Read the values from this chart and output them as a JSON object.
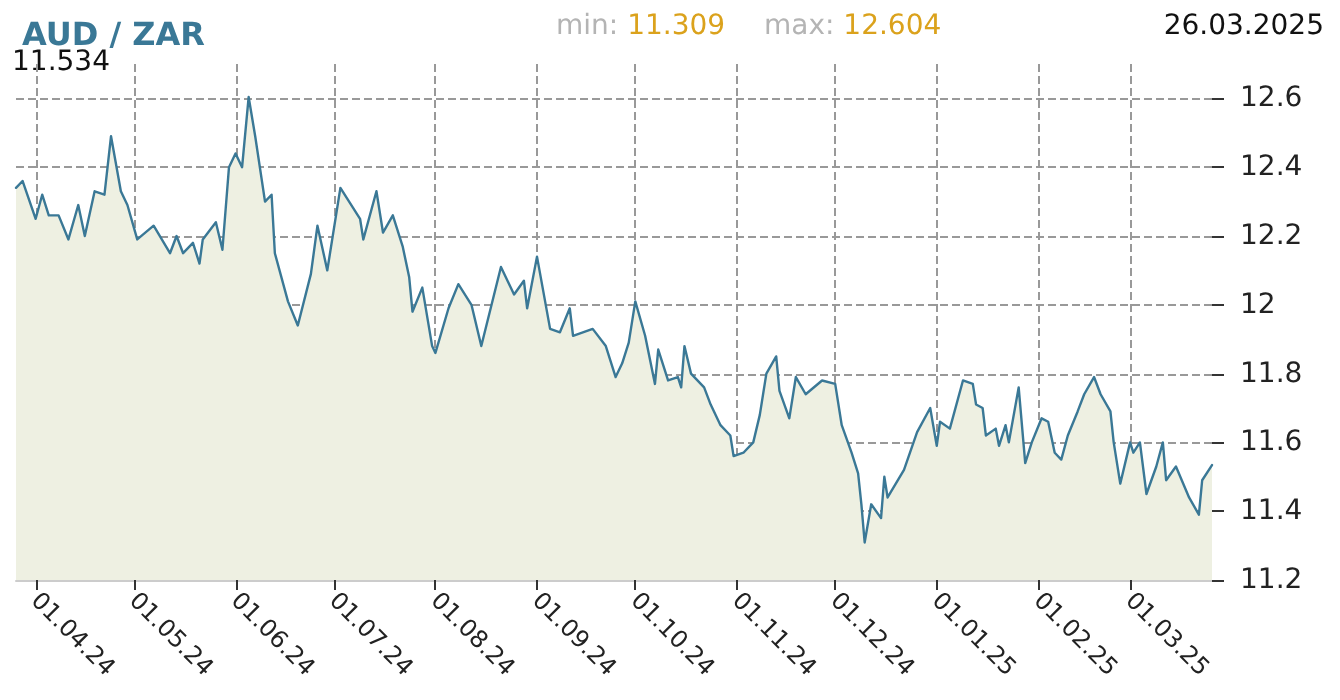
{
  "chart_data": {
    "type": "area",
    "title": "AUD / ZAR",
    "annotations": [
      "min: 11.309",
      "max: 12.604",
      "26.03.2025",
      "11.534"
    ],
    "x": [
      "2024-03-26",
      "2024-03-28",
      "2024-04-01",
      "2024-04-03",
      "2024-04-05",
      "2024-04-08",
      "2024-04-11",
      "2024-04-14",
      "2024-04-16",
      "2024-04-19",
      "2024-04-22",
      "2024-04-24",
      "2024-04-27",
      "2024-04-29",
      "2024-05-02",
      "2024-05-07",
      "2024-05-12",
      "2024-05-14",
      "2024-05-16",
      "2024-05-19",
      "2024-05-21",
      "2024-05-22",
      "2024-05-26",
      "2024-05-28",
      "2024-05-30",
      "2024-06-01",
      "2024-06-03",
      "2024-06-05",
      "2024-06-07",
      "2024-06-10",
      "2024-06-12",
      "2024-06-13",
      "2024-06-17",
      "2024-06-20",
      "2024-06-24",
      "2024-06-26",
      "2024-06-29",
      "2024-07-03",
      "2024-07-09",
      "2024-07-10",
      "2024-07-14",
      "2024-07-16",
      "2024-07-19",
      "2024-07-22",
      "2024-07-24",
      "2024-07-25",
      "2024-07-28",
      "2024-07-31",
      "2024-08-01",
      "2024-08-05",
      "2024-08-08",
      "2024-08-12",
      "2024-08-15",
      "2024-08-21",
      "2024-08-25",
      "2024-08-28",
      "2024-08-29",
      "2024-09-01",
      "2024-09-05",
      "2024-09-08",
      "2024-09-11",
      "2024-09-12",
      "2024-09-18",
      "2024-09-22",
      "2024-09-25",
      "2024-09-27",
      "2024-09-29",
      "2024-10-01",
      "2024-10-04",
      "2024-10-07",
      "2024-10-08",
      "2024-10-11",
      "2024-10-14",
      "2024-10-15",
      "2024-10-16",
      "2024-10-18",
      "2024-10-22",
      "2024-10-24",
      "2024-10-27",
      "2024-10-30",
      "2024-10-31",
      "2024-11-03",
      "2024-11-06",
      "2024-11-08",
      "2024-11-10",
      "2024-11-13",
      "2024-11-14",
      "2024-11-17",
      "2024-11-19",
      "2024-11-22",
      "2024-11-27",
      "2024-12-01",
      "2024-12-03",
      "2024-12-06",
      "2024-12-08",
      "2024-12-09",
      "2024-12-10",
      "2024-12-12",
      "2024-12-15",
      "2024-12-16",
      "2024-12-17",
      "2024-12-22",
      "2024-12-26",
      "2024-12-30",
      "2025-01-01",
      "2025-01-02",
      "2025-01-05",
      "2025-01-09",
      "2025-01-12",
      "2025-01-13",
      "2025-01-15",
      "2025-01-16",
      "2025-01-19",
      "2025-01-20",
      "2025-01-22",
      "2025-01-23",
      "2025-01-26",
      "2025-01-28",
      "2025-01-30",
      "2025-02-02",
      "2025-02-04",
      "2025-02-06",
      "2025-02-08",
      "2025-02-10",
      "2025-02-13",
      "2025-02-15",
      "2025-02-18",
      "2025-02-20",
      "2025-02-23",
      "2025-02-24",
      "2025-02-26",
      "2025-03-01",
      "2025-03-02",
      "2025-03-04",
      "2025-03-06",
      "2025-03-09",
      "2025-03-11",
      "2025-03-12",
      "2025-03-15",
      "2025-03-19",
      "2025-03-22",
      "2025-03-23",
      "2025-03-26"
    ],
    "series": [
      {
        "color": "#3a7896",
        "values": [
          12.34,
          12.36,
          12.25,
          12.32,
          12.26,
          12.26,
          12.19,
          12.29,
          12.2,
          12.33,
          12.32,
          12.49,
          12.33,
          12.29,
          12.19,
          12.23,
          12.15,
          12.2,
          12.15,
          12.18,
          12.12,
          12.19,
          12.24,
          12.16,
          12.4,
          12.44,
          12.4,
          12.604,
          12.49,
          12.3,
          12.32,
          12.15,
          12.01,
          11.94,
          12.09,
          12.23,
          12.1,
          12.34,
          12.25,
          12.19,
          12.33,
          12.21,
          12.26,
          12.17,
          12.08,
          11.98,
          12.05,
          11.88,
          11.86,
          11.99,
          12.06,
          12.0,
          11.88,
          12.11,
          12.03,
          12.07,
          11.99,
          12.14,
          11.93,
          11.92,
          11.99,
          11.91,
          11.93,
          11.88,
          11.79,
          11.83,
          11.89,
          12.01,
          11.91,
          11.77,
          11.87,
          11.78,
          11.79,
          11.76,
          11.88,
          11.8,
          11.76,
          11.71,
          11.65,
          11.62,
          11.56,
          11.57,
          11.6,
          11.68,
          11.8,
          11.85,
          11.75,
          11.67,
          11.79,
          11.74,
          11.78,
          11.77,
          11.65,
          11.57,
          11.51,
          11.42,
          11.309,
          11.42,
          11.38,
          11.5,
          11.44,
          11.52,
          11.63,
          11.7,
          11.59,
          11.66,
          11.64,
          11.78,
          11.77,
          11.71,
          11.7,
          11.62,
          11.64,
          11.59,
          11.65,
          11.6,
          11.76,
          11.54,
          11.6,
          11.67,
          11.66,
          11.57,
          11.55,
          11.62,
          11.69,
          11.74,
          11.79,
          11.74,
          11.69,
          11.6,
          11.48,
          11.6,
          11.57,
          11.6,
          11.45,
          11.53,
          11.6,
          11.49,
          11.53,
          11.44,
          11.39,
          11.49,
          11.534
        ]
      }
    ],
    "xlim": [
      "2024-03-26",
      "2025-03-26"
    ],
    "xticks": [
      {
        "value": "2024-04-01",
        "label": "01.04.24"
      },
      {
        "value": "2024-05-01",
        "label": "01.05.24"
      },
      {
        "value": "2024-06-01",
        "label": "01.06.24"
      },
      {
        "value": "2024-07-01",
        "label": "01.07.24"
      },
      {
        "value": "2024-08-01",
        "label": "01.08.24"
      },
      {
        "value": "2024-09-01",
        "label": "01.09.24"
      },
      {
        "value": "2024-10-01",
        "label": "01.10.24"
      },
      {
        "value": "2024-11-01",
        "label": "01.11.24"
      },
      {
        "value": "2024-12-01",
        "label": "01.12.24"
      },
      {
        "value": "2025-01-01",
        "label": "01.01.25"
      },
      {
        "value": "2025-02-01",
        "label": "01.02.25"
      },
      {
        "value": "2025-03-01",
        "label": "01.03.25"
      }
    ],
    "ylim": [
      11.2,
      12.7
    ],
    "yticks": [
      11.2,
      11.4,
      11.6,
      11.8,
      12,
      12.2,
      12.4,
      12.6
    ],
    "grid": true,
    "marker": "none",
    "line_style": "solid"
  }
}
